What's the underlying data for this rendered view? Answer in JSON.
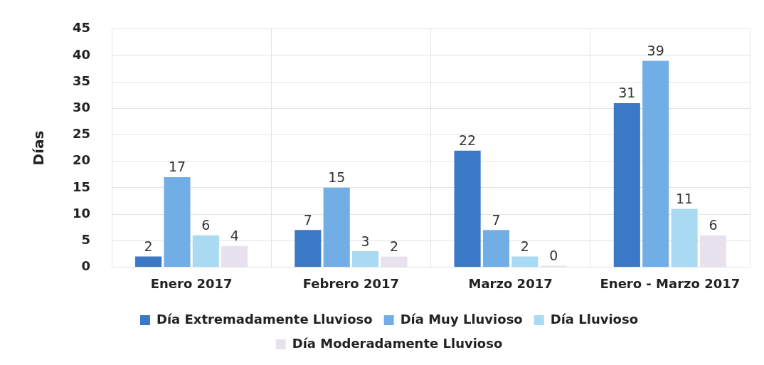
{
  "chart_data": {
    "type": "bar",
    "ylabel": "Días",
    "categories": [
      "Enero 2017",
      "Febrero 2017",
      "Marzo 2017",
      "Enero - Marzo 2017"
    ],
    "series": [
      {
        "name": "Día Extremadamente Lluvioso",
        "color": "#3b78c6",
        "values": [
          2,
          7,
          22,
          31
        ]
      },
      {
        "name": "Día Muy Lluvioso",
        "color": "#72aee6",
        "values": [
          17,
          15,
          7,
          39
        ]
      },
      {
        "name": "Día Lluvioso",
        "color": "#aadaf2",
        "values": [
          6,
          3,
          2,
          11
        ]
      },
      {
        "name": "Día Moderadamente Lluvioso",
        "color": "#e8e2ee",
        "values": [
          4,
          2,
          0,
          6
        ]
      }
    ],
    "ylim": [
      0,
      45
    ],
    "yticks": [
      0,
      5,
      10,
      15,
      20,
      25,
      30,
      35,
      40,
      45
    ],
    "grid": true,
    "legend": "bottom",
    "data_labels": true
  }
}
